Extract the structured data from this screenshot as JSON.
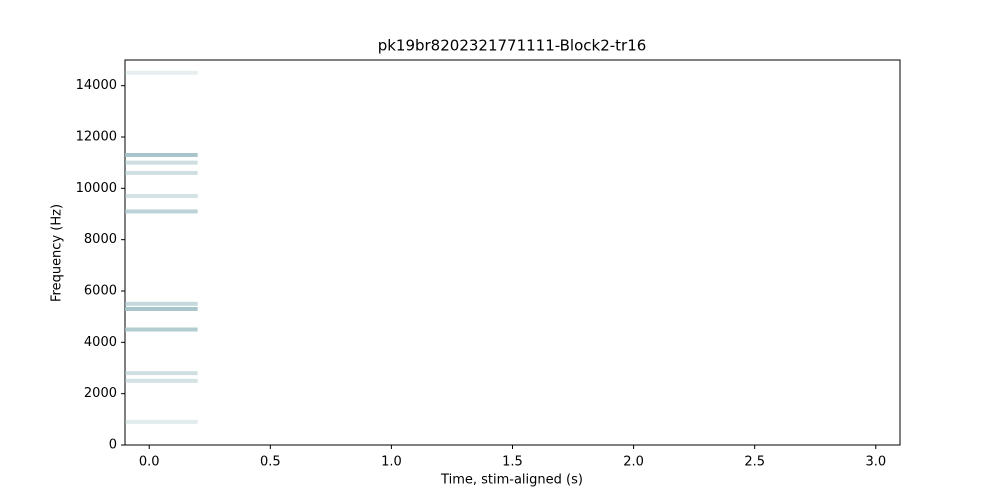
{
  "chart_data": {
    "type": "spectrogram",
    "title": "pk19br8202321771111-Block2-tr16",
    "xlabel": "Time, stim-aligned (s)",
    "ylabel": "Frequency (Hz)",
    "xlim": [
      -0.1,
      3.1
    ],
    "ylim": [
      0,
      15000
    ],
    "xticks": [
      {
        "value": 0,
        "label": "0.0"
      },
      0.5,
      {
        "value": 1,
        "label": "1.0"
      },
      1.5,
      {
        "value": 2,
        "label": "2.0"
      },
      2.5,
      {
        "value": 3,
        "label": "3.0"
      }
    ],
    "yticks": [
      0,
      2000,
      4000,
      6000,
      8000,
      10000,
      12000,
      14000
    ],
    "color": "#9fbfc4",
    "bands": {
      "x_start": -0.1,
      "x_end": 0.2,
      "frequencies": [
        14500,
        11300,
        11000,
        10600,
        9700,
        9100,
        5500,
        5300,
        4500,
        2800,
        2500,
        900
      ],
      "intensity": [
        0.25,
        0.9,
        0.5,
        0.5,
        0.45,
        0.7,
        0.6,
        0.9,
        0.8,
        0.5,
        0.45,
        0.3
      ]
    }
  }
}
